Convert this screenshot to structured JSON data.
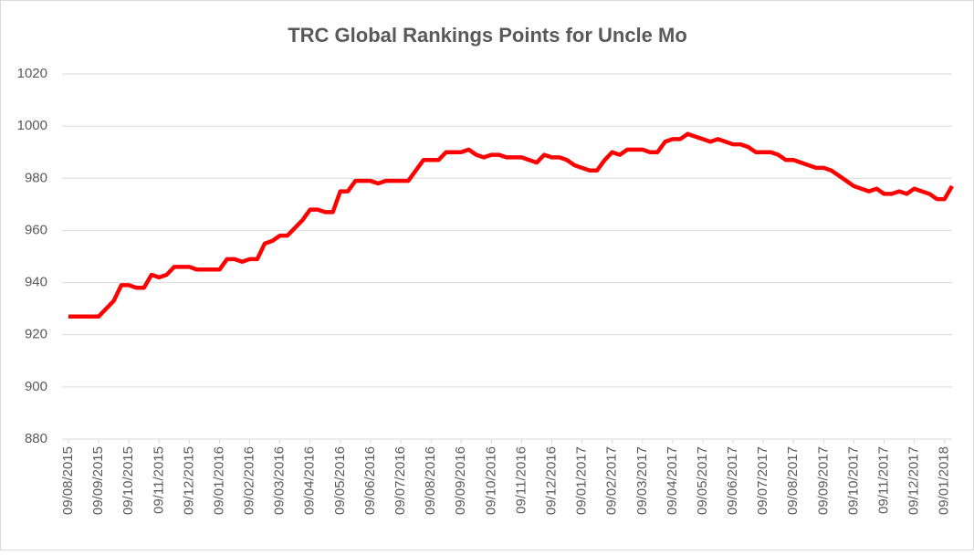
{
  "chart_data": {
    "type": "line",
    "title": "TRC Global Rankings Points for Uncle Mo",
    "categories": [
      "09/08/2015",
      null,
      null,
      null,
      "09/09/2015",
      null,
      null,
      null,
      "09/10/2015",
      null,
      null,
      null,
      "09/11/2015",
      null,
      null,
      null,
      "09/12/2015",
      null,
      null,
      null,
      "09/01/2016",
      null,
      null,
      null,
      "09/02/2016",
      null,
      null,
      null,
      "09/03/2016",
      null,
      null,
      null,
      "09/04/2016",
      null,
      null,
      null,
      "09/05/2016",
      null,
      null,
      null,
      "09/06/2016",
      null,
      null,
      null,
      "09/07/2016",
      null,
      null,
      null,
      "09/08/2016",
      null,
      null,
      null,
      "09/09/2016",
      null,
      null,
      null,
      "09/10/2016",
      null,
      null,
      null,
      "09/11/2016",
      null,
      null,
      null,
      "09/12/2016",
      null,
      null,
      null,
      "09/01/2017",
      null,
      null,
      null,
      "09/02/2017",
      null,
      null,
      null,
      "09/03/2017",
      null,
      null,
      null,
      "09/04/2017",
      null,
      null,
      null,
      "09/05/2017",
      null,
      null,
      null,
      "09/06/2017",
      null,
      null,
      null,
      "09/07/2017",
      null,
      null,
      null,
      "09/08/2017",
      null,
      null,
      null,
      "09/09/2017",
      null,
      null,
      null,
      "09/10/2017",
      null,
      null,
      null,
      "09/11/2017",
      null,
      null,
      null,
      "09/12/2017",
      null,
      null,
      null,
      "09/01/2018",
      null
    ],
    "values": [
      927,
      927,
      927,
      927,
      927,
      930,
      933,
      939,
      939,
      938,
      938,
      943,
      942,
      943,
      946,
      946,
      946,
      945,
      945,
      945,
      945,
      949,
      949,
      948,
      949,
      949,
      955,
      956,
      958,
      958,
      961,
      964,
      968,
      968,
      967,
      967,
      975,
      975,
      979,
      979,
      979,
      978,
      979,
      979,
      979,
      979,
      983,
      987,
      987,
      987,
      990,
      990,
      990,
      991,
      989,
      988,
      989,
      989,
      988,
      988,
      988,
      987,
      986,
      989,
      988,
      988,
      987,
      985,
      984,
      983,
      983,
      987,
      990,
      989,
      991,
      991,
      991,
      990,
      990,
      994,
      995,
      995,
      997,
      996,
      995,
      994,
      995,
      994,
      993,
      993,
      992,
      990,
      990,
      990,
      989,
      987,
      987,
      986,
      985,
      984,
      984,
      983,
      981,
      979,
      977,
      976,
      975,
      976,
      974,
      974,
      975,
      974,
      976,
      975,
      974,
      972,
      972,
      977
    ],
    "color": "#ff0000",
    "ylim": [
      880,
      1020
    ],
    "yticks": [
      880,
      900,
      920,
      940,
      960,
      980,
      1000,
      1020
    ],
    "grid": true
  }
}
